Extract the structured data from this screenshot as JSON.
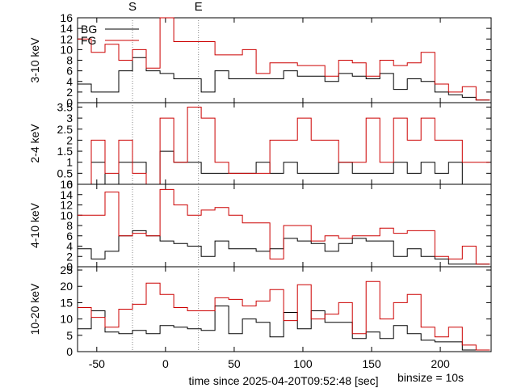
{
  "chart_data": {
    "type": "line",
    "markers": [
      {
        "label": "S",
        "x": -24
      },
      {
        "label": "E",
        "x": 24
      }
    ],
    "xlabel": "time since 2025-04-20T09:52:48 [sec]",
    "binsize_label": "binsize = 10s",
    "xlim": [
      -64,
      237
    ],
    "xticks": [
      -50,
      0,
      50,
      100,
      150,
      200
    ],
    "legend": [
      {
        "name": "BG",
        "color": "#000000"
      },
      {
        "name": "FG",
        "color": "#cc0000"
      }
    ],
    "bin_edges": [
      -64,
      -54,
      -44,
      -34,
      -24,
      -14,
      -4,
      6,
      16,
      26,
      36,
      46,
      56,
      66,
      76,
      86,
      96,
      106,
      116,
      126,
      136,
      146,
      156,
      166,
      176,
      186,
      196,
      206,
      216,
      226,
      236
    ],
    "panels": [
      {
        "ylabel": "3-10 keV",
        "ylim": [
          0,
          16
        ],
        "yticks": [
          0,
          2,
          4,
          6,
          8,
          10,
          12,
          14,
          16
        ],
        "series": [
          {
            "name": "BG",
            "values": [
              3.5,
              2.0,
              2.0,
              6.0,
              8.5,
              6.0,
              5.5,
              4.5,
              4.5,
              2.0,
              6.0,
              4.5,
              4.5,
              4.5,
              4.5,
              6.0,
              5.0,
              5.0,
              4.0,
              5.5,
              5.0,
              4.5,
              5.5,
              2.5,
              4.5,
              4.0,
              2.0,
              1.5,
              1.0,
              0.5
            ]
          },
          {
            "name": "FG",
            "values": [
              12,
              9.5,
              11,
              8,
              10,
              6.5,
              16,
              11.5,
              11.5,
              11.5,
              9,
              9,
              10,
              5.5,
              7.5,
              7.5,
              7,
              7,
              5,
              8,
              7.5,
              5,
              8,
              7,
              7.5,
              9.5,
              3.5,
              2,
              3,
              0.5
            ]
          }
        ]
      },
      {
        "ylabel": "2-4 keV",
        "ylim": [
          0,
          3.7
        ],
        "yticks": [
          0,
          0.5,
          1,
          1.5,
          2,
          2.5,
          3,
          3.5
        ],
        "yticklabels": [
          "0",
          "0.5",
          "1",
          "1.5",
          "2",
          "2.5",
          "3",
          "3.5"
        ],
        "series": [
          {
            "name": "BG",
            "values": [
              0,
              1,
              0,
              1,
              1,
              0,
              1.5,
              1,
              1,
              0.5,
              0.5,
              0.5,
              0.5,
              1,
              0.5,
              1,
              0.5,
              0.5,
              0.5,
              1,
              0.5,
              0.5,
              0.5,
              1,
              0.5,
              1,
              0.5,
              1,
              0,
              0
            ]
          },
          {
            "name": "FG",
            "values": [
              0,
              2,
              0.5,
              2,
              0.5,
              0,
              3,
              1,
              3.5,
              3,
              1,
              0.5,
              0.5,
              0.5,
              2,
              2,
              3,
              2,
              2,
              1,
              1,
              3,
              1,
              3,
              2,
              3,
              2,
              2,
              1,
              1
            ]
          }
        ]
      },
      {
        "ylabel": "4-10 keV",
        "ylim": [
          0,
          16
        ],
        "yticks": [
          0,
          2,
          4,
          6,
          8,
          10,
          12,
          14,
          16
        ],
        "series": [
          {
            "name": "BG",
            "values": [
              3.5,
              1.5,
              3.0,
              6.0,
              7.0,
              6.0,
              5.0,
              4.5,
              4.0,
              2.0,
              5.0,
              3.5,
              3.5,
              3.0,
              3.5,
              5.5,
              5.0,
              4.5,
              3.0,
              4.5,
              5.5,
              5.0,
              5.0,
              2.0,
              3.5,
              2.0,
              1.5,
              0.5,
              0.5,
              0.5
            ]
          },
          {
            "name": "FG",
            "values": [
              10,
              10,
              14.5,
              6,
              6.5,
              6,
              15,
              12,
              10,
              11,
              11.5,
              10,
              8.5,
              8.5,
              1.5,
              8,
              8,
              5,
              6,
              5.5,
              6,
              6,
              7.5,
              6.5,
              7,
              7,
              2,
              1.5,
              4,
              0.5
            ]
          }
        ]
      },
      {
        "ylabel": "10-20 keV",
        "ylim": [
          0,
          26
        ],
        "yticks": [
          0,
          5,
          10,
          15,
          20,
          25
        ],
        "yticklabels": [
          "0",
          "5",
          "10",
          "15",
          "20",
          "25"
        ],
        "series": [
          {
            "name": "BG",
            "values": [
              7.0,
              12.5,
              6.0,
              5.5,
              6.5,
              5.5,
              8.0,
              7.5,
              7.0,
              6.5,
              14.0,
              5.5,
              10.0,
              9.0,
              4.5,
              12.0,
              7.0,
              12.5,
              9.0,
              9.0,
              4.0,
              6.0,
              4.0,
              8.0,
              5.5,
              3.5,
              3.0,
              3.0,
              0.5,
              0.5
            ]
          },
          {
            "name": "FG",
            "values": [
              13.5,
              10.5,
              7.5,
              13,
              14.5,
              21,
              17.5,
              13.5,
              12.5,
              12.5,
              16.5,
              16,
              14,
              15.5,
              19,
              9.5,
              20.5,
              10,
              11.5,
              15,
              5.5,
              21.5,
              10,
              15,
              17.5,
              7.5,
              4.5,
              7.5,
              2,
              0.5
            ]
          }
        ]
      }
    ]
  }
}
